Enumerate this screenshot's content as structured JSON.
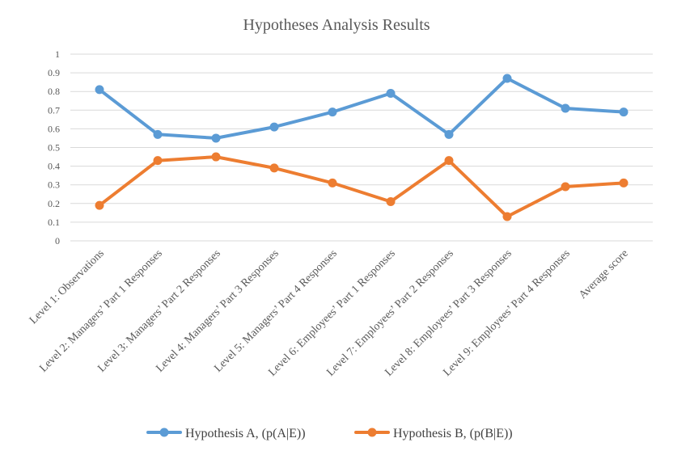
{
  "chart_data": {
    "type": "line",
    "title": "Hypotheses Analysis Results",
    "xlabel": "",
    "ylabel": "",
    "ylim": [
      0,
      1
    ],
    "yticks": [
      "0",
      "0.1",
      "0.2",
      "0.3",
      "0.4",
      "0.5",
      "0.6",
      "0.7",
      "0.8",
      "0.9",
      "1"
    ],
    "grid": true,
    "legend_position": "bottom",
    "categories": [
      "Level 1: Observations",
      "Level 2: Managers’ Part 1 Responses",
      "Level 3: Managers’ Part 2 Responses",
      "Level 4: Managers’ Part 3 Responses",
      "Level 5: Managers’ Part 4 Responses",
      "Level 6: Employees’ Part 1 Responses",
      "Level 7: Employees’ Part 2 Responses",
      "Level 8: Employees’ Part 3 Responses",
      "Level 9: Employees’ Part 4 Responses",
      "Average score"
    ],
    "series": [
      {
        "name": "Hypothesis A, (p(A|E))",
        "color": "#5b9bd5",
        "values": [
          0.81,
          0.57,
          0.55,
          0.61,
          0.69,
          0.79,
          0.57,
          0.87,
          0.71,
          0.69
        ]
      },
      {
        "name": "Hypothesis B, (p(B|E))",
        "color": "#ed7d31",
        "values": [
          0.19,
          0.43,
          0.45,
          0.39,
          0.31,
          0.21,
          0.43,
          0.13,
          0.29,
          0.31
        ]
      }
    ]
  }
}
